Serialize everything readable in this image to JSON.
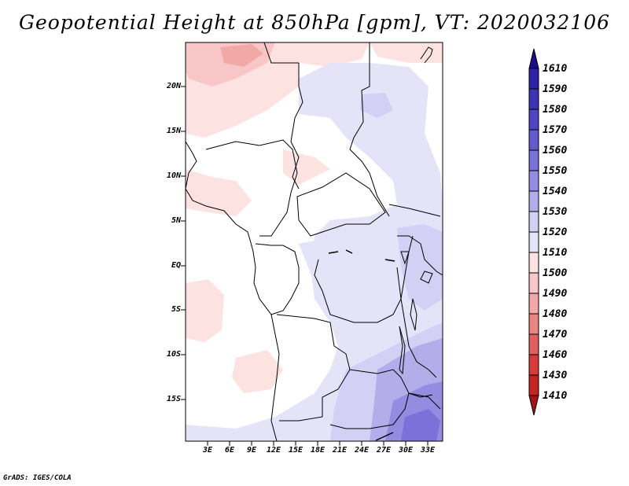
{
  "title": "Geopotential Height at 850hPa [gpm], VT: 2020032106",
  "credit": "GrADS: IGES/COLA",
  "lat_labels": [
    "20N",
    "15N",
    "10N",
    "5N",
    "EQ",
    "5S",
    "10S",
    "15S"
  ],
  "lon_labels": [
    "3E",
    "6E",
    "9E",
    "12E",
    "15E",
    "18E",
    "21E",
    "24E",
    "27E",
    "30E",
    "33E"
  ],
  "colorbar": {
    "levels": [
      "1610",
      "1590",
      "1580",
      "1570",
      "1560",
      "1550",
      "1540",
      "1530",
      "1520",
      "1510",
      "1500",
      "1490",
      "1480",
      "1470",
      "1460",
      "1430",
      "1410"
    ],
    "colors": [
      "#1a0d8c",
      "#2e22a6",
      "#3d34b3",
      "#4e46c2",
      "#625acd",
      "#7a72d9",
      "#938ce0",
      "#b3aeea",
      "#d2d0f4",
      "#e4e3f8",
      "#fde2e2",
      "#f8c6c6",
      "#f3a8a8",
      "#eb8585",
      "#e25f5f",
      "#d83a3a",
      "#c42424",
      "#a51515"
    ]
  },
  "map": {
    "region": "Central Africa",
    "lon_range": [
      0,
      35
    ],
    "lat_range": [
      -20,
      25
    ],
    "variable": "Geopotential Height",
    "level": "850hPa",
    "units": "gpm",
    "valid_time": "2020032106"
  }
}
